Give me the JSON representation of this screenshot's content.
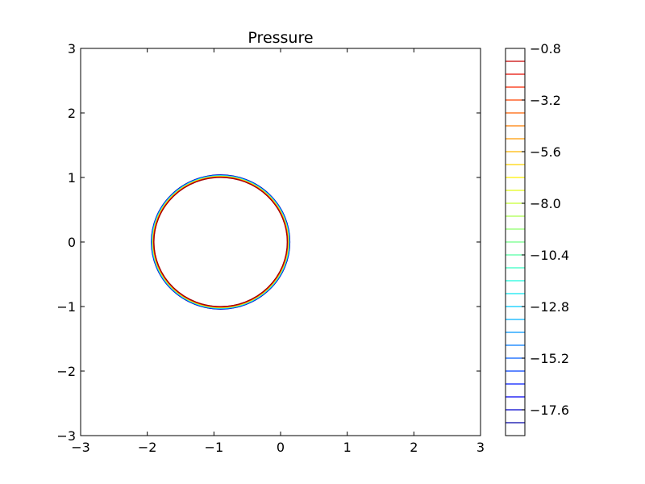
{
  "chart_data": {
    "type": "contour",
    "title": "Pressure",
    "xlabel": "",
    "ylabel": "",
    "xlim": [
      -3,
      3
    ],
    "ylim": [
      -3,
      3
    ],
    "x_ticks": [
      -3,
      -2,
      -1,
      0,
      1,
      2,
      3
    ],
    "y_ticks": [
      -3,
      -2,
      -1,
      0,
      1,
      2,
      3
    ],
    "x_tick_labels": [
      "−3",
      "−2",
      "−1",
      "0",
      "1",
      "2",
      "3"
    ],
    "y_tick_labels": [
      "−3",
      "−2",
      "−1",
      "0",
      "1",
      "2",
      "3"
    ],
    "grid": false,
    "contour_center": [
      -0.9,
      0
    ],
    "contour_radius": 1.0,
    "colorbar": {
      "min": -18.8,
      "max": -0.8,
      "levels": [
        -18.2,
        -17.6,
        -17.0,
        -16.4,
        -15.8,
        -15.2,
        -14.6,
        -14.0,
        -13.4,
        -12.8,
        -12.2,
        -11.6,
        -11.0,
        -10.4,
        -9.8,
        -9.2,
        -8.6,
        -8.0,
        -7.4,
        -6.8,
        -6.2,
        -5.6,
        -5.0,
        -4.4,
        -3.8,
        -3.2,
        -2.6,
        -2.0,
        -1.4
      ],
      "level_colors": [
        "#00007f",
        "#0000c0",
        "#0000ff",
        "#0040ff",
        "#0070ff",
        "#00a0ff",
        "#00ccff",
        "#10f8e8",
        "#40ffb8",
        "#70ff88",
        "#a0ff58",
        "#d0ff28",
        "#fff000",
        "#ffc000",
        "#ff9000",
        "#ff6000",
        "#ff3000",
        "#e00000",
        "#a00000"
      ],
      "tick_values": [
        -0.8,
        -3.2,
        -5.6,
        -8.0,
        -10.4,
        -12.8,
        -15.2,
        -17.6
      ],
      "tick_labels": [
        "−0.8",
        "−3.2",
        "−5.6",
        "−8.0",
        "−10.4",
        "−12.8",
        "−15.2",
        "−17.6"
      ]
    }
  }
}
